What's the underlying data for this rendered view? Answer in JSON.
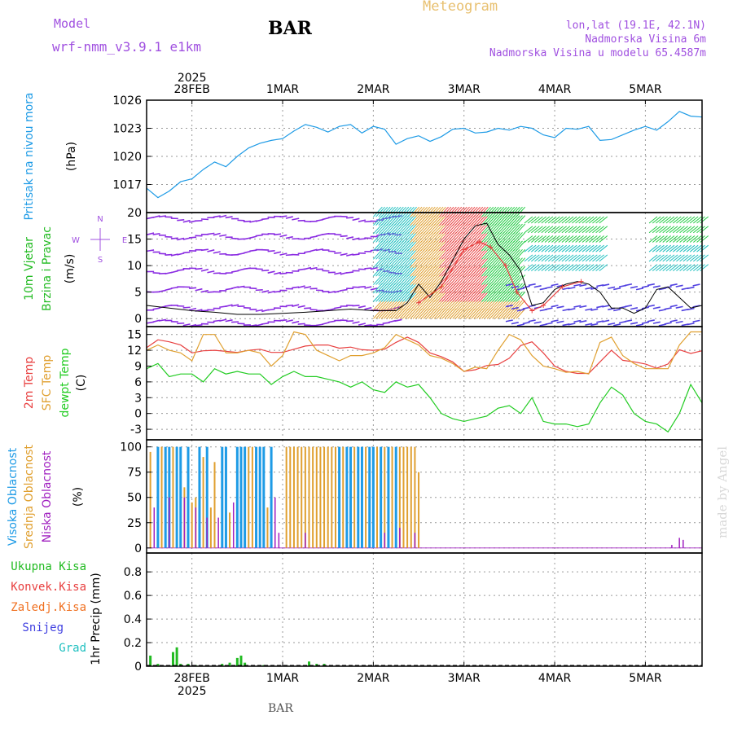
{
  "header": {
    "title": "Meteogram",
    "model_label": "Model",
    "model_name": "wrf-nmm_v3.9.1  e1km",
    "station": "BAR",
    "lonlat": "lon,lat (19.1E, 42.1N)",
    "elevation": "Nadmorska Visina 6m",
    "model_elevation": "Nadmorska Visina u modelu 65.4587m",
    "watermark": "made by Angel",
    "footer": "BAR"
  },
  "colors": {
    "pressure": "#1e9be6",
    "wind_label": "#22bb22",
    "compass": "#a050e0",
    "temp": "#e84040",
    "sfc_temp": "#e0a030",
    "dewpt": "#22cc22",
    "high_cloud": "#1e9be6",
    "mid_cloud": "#e0a030",
    "low_cloud": "#a020c0",
    "precip_total": "#22bb22",
    "precip_conv": "#e84040",
    "precip_frz": "#f07020",
    "snow": "#4040e0",
    "hail": "#20c0c0",
    "header_purple": "#a050e0",
    "header_orange": "#e8c070",
    "gust": "#e84040"
  },
  "time_axis": {
    "year": "2025",
    "days": [
      "28FEB",
      "1MAR",
      "2MAR",
      "3MAR",
      "4MAR",
      "5MAR"
    ],
    "day_positions_hours": [
      12,
      36,
      60,
      84,
      108,
      132
    ],
    "range_hours": [
      0,
      147
    ]
  },
  "chart_data": [
    {
      "type": "line",
      "panel": "pressure",
      "ylabel": "Pritisak na nivou mora",
      "unit": "(hPa)",
      "yticks": [
        "1017",
        "1020",
        "1023",
        "1026"
      ],
      "ylim": [
        1014,
        1026
      ],
      "grid": true,
      "series": [
        {
          "x": [
            0,
            3,
            6,
            9,
            12,
            15,
            18,
            21,
            24,
            27,
            30,
            33,
            36,
            39,
            42,
            45,
            48,
            51,
            54,
            57,
            60,
            63,
            66,
            69,
            72,
            75,
            78,
            81,
            84,
            87,
            90,
            93,
            96,
            99,
            102,
            105,
            108,
            111,
            114,
            117,
            120,
            123,
            126,
            129,
            132,
            135,
            138,
            141,
            144,
            147
          ],
          "values": [
            1016.6,
            1015.6,
            1016.3,
            1017.3,
            1017.6,
            1018.6,
            1019.4,
            1018.9,
            1020.0,
            1020.9,
            1021.4,
            1021.7,
            1021.9,
            1022.7,
            1023.4,
            1023.1,
            1022.6,
            1023.2,
            1023.4,
            1022.5,
            1023.2,
            1022.9,
            1021.3,
            1021.9,
            1022.2,
            1021.6,
            1022.1,
            1022.9,
            1023.0,
            1022.5,
            1022.6,
            1023.0,
            1022.8,
            1023.2,
            1023.0,
            1022.3,
            1022.0,
            1023.0,
            1022.9,
            1023.2,
            1021.7,
            1021.8,
            1022.3,
            1022.8,
            1023.2,
            1022.8,
            1023.7,
            1024.8,
            1024.3,
            1024.2
          ]
        }
      ]
    },
    {
      "type": "line",
      "panel": "wind",
      "ylabel": "10m Vjetar",
      "ylabel2": "Brzina i Pravac",
      "unit": "(m/s)",
      "compass": {
        "n": "N",
        "s": "S",
        "e": "E",
        "w": "W"
      },
      "yticks": [
        "0",
        "5",
        "10",
        "15",
        "20"
      ],
      "ylim": [
        -1.5,
        20
      ],
      "grid": true,
      "series": [
        {
          "name": "speed",
          "x": [
            0,
            6,
            12,
            18,
            24,
            30,
            36,
            42,
            48,
            54,
            60,
            66,
            69,
            72,
            75,
            78,
            81,
            84,
            87,
            90,
            93,
            96,
            99,
            102,
            105,
            108,
            111,
            114,
            117,
            120,
            123,
            126,
            129,
            132,
            135,
            138,
            141,
            144,
            147
          ],
          "values": [
            2.5,
            2.0,
            1.5,
            1.2,
            0.8,
            0.8,
            1.0,
            1.2,
            1.5,
            1.8,
            1.5,
            1.5,
            3.0,
            6.5,
            4.0,
            7.0,
            11.0,
            15.0,
            17.5,
            18.0,
            14.0,
            12.0,
            9.0,
            2.5,
            3.0,
            5.5,
            6.5,
            7.0,
            6.5,
            5.0,
            2.0,
            2.0,
            1.0,
            2.0,
            5.5,
            6.0,
            4.0,
            2.0,
            2.5
          ]
        },
        {
          "name": "gust",
          "x": [
            72,
            78,
            84,
            88,
            91,
            95,
            98,
            102,
            105,
            110,
            115
          ],
          "values": [
            3.0,
            6.0,
            13.0,
            14.5,
            13.5,
            10.0,
            5.0,
            1.5,
            2.5,
            6.0,
            7.0
          ]
        }
      ]
    },
    {
      "type": "line",
      "panel": "temperature",
      "ylabels": [
        "2m Temp",
        "SFC Temp",
        "dewpt Temp"
      ],
      "unit": "(C)",
      "yticks": [
        "-3",
        "0",
        "3",
        "6",
        "9",
        "12",
        "15"
      ],
      "ylim": [
        -5,
        16.5
      ],
      "grid": true,
      "series": [
        {
          "name": "2m Temp",
          "x": [
            0,
            3,
            6,
            9,
            12,
            15,
            18,
            21,
            24,
            27,
            30,
            33,
            36,
            39,
            42,
            45,
            48,
            51,
            54,
            57,
            60,
            63,
            66,
            69,
            72,
            75,
            78,
            81,
            84,
            87,
            90,
            93,
            96,
            99,
            102,
            105,
            108,
            111,
            114,
            117,
            120,
            123,
            126,
            129,
            132,
            135,
            138,
            141,
            144,
            147
          ],
          "values": [
            12.5,
            14.0,
            13.6,
            13.0,
            11.5,
            11.9,
            12.0,
            11.8,
            11.6,
            12.0,
            12.2,
            11.6,
            11.6,
            12.2,
            12.8,
            13.0,
            13.0,
            12.4,
            12.6,
            12.1,
            12.0,
            12.2,
            13.5,
            14.5,
            13.5,
            11.5,
            10.8,
            9.8,
            8.0,
            8.3,
            9.1,
            9.3,
            10.5,
            12.9,
            13.6,
            11.5,
            9.0,
            8.0,
            7.6,
            7.6,
            9.8,
            12.0,
            10.1,
            9.8,
            9.4,
            8.6,
            9.4,
            12.1,
            11.4,
            11.9
          ]
        },
        {
          "name": "SFC Temp",
          "x": [
            0,
            3,
            6,
            9,
            12,
            15,
            18,
            21,
            24,
            27,
            30,
            33,
            36,
            39,
            42,
            45,
            48,
            51,
            54,
            57,
            60,
            63,
            66,
            69,
            72,
            75,
            78,
            81,
            84,
            87,
            90,
            93,
            96,
            99,
            102,
            105,
            108,
            111,
            114,
            117,
            120,
            123,
            126,
            129,
            132,
            135,
            138,
            141,
            144,
            147
          ],
          "values": [
            12.0,
            13.0,
            12.0,
            11.5,
            10.0,
            15.0,
            15.0,
            11.5,
            11.5,
            12.0,
            11.5,
            9.0,
            11.0,
            15.5,
            15.0,
            12.0,
            11.0,
            10.0,
            11.0,
            11.0,
            11.5,
            12.5,
            15.0,
            14.0,
            13.0,
            11.0,
            10.5,
            9.5,
            8.0,
            8.8,
            8.5,
            12.0,
            15.0,
            14.0,
            11.0,
            9.0,
            8.5,
            7.8,
            8.0,
            7.5,
            13.5,
            14.5,
            11.0,
            9.5,
            8.5,
            8.5,
            8.5,
            13.0,
            15.5,
            15.5
          ]
        },
        {
          "name": "dewpt Temp",
          "x": [
            0,
            3,
            6,
            9,
            12,
            15,
            18,
            21,
            24,
            27,
            30,
            33,
            36,
            39,
            42,
            45,
            48,
            51,
            54,
            57,
            60,
            63,
            66,
            69,
            72,
            75,
            78,
            81,
            84,
            87,
            90,
            93,
            96,
            99,
            102,
            105,
            108,
            111,
            114,
            117,
            120,
            123,
            126,
            129,
            132,
            135,
            138,
            141,
            144,
            147
          ],
          "values": [
            8.5,
            9.5,
            7.0,
            7.5,
            7.5,
            6.0,
            8.5,
            7.5,
            8.0,
            7.5,
            7.5,
            5.5,
            7.0,
            8.0,
            7.0,
            7.0,
            6.5,
            6.0,
            5.0,
            6.0,
            4.5,
            4.0,
            6.0,
            5.0,
            5.5,
            3.0,
            0.0,
            -1.0,
            -1.5,
            -1.0,
            -0.5,
            1.0,
            1.5,
            0.0,
            3.0,
            -1.5,
            -2.0,
            -2.0,
            -2.5,
            -2.0,
            2.0,
            5.0,
            3.5,
            0.0,
            -1.5,
            -2.0,
            -3.5,
            0.0,
            5.5,
            2.0
          ]
        }
      ]
    },
    {
      "type": "bar",
      "panel": "cloud",
      "ylabels": [
        "Visoka Oblacnost",
        "Srednja Oblacnost",
        "Niska Oblacnost"
      ],
      "unit": "(%)",
      "yticks": [
        "0",
        "25",
        "50",
        "75",
        "100"
      ],
      "ylim": [
        -5,
        107
      ],
      "grid": true,
      "series": [
        {
          "name": "Visoka Oblacnost",
          "x": [
            3,
            5,
            6,
            8,
            9,
            11,
            14,
            16,
            20,
            21,
            24,
            25,
            26,
            29,
            30,
            31,
            33,
            51,
            53,
            54,
            56,
            57,
            59,
            60,
            62,
            64,
            66
          ],
          "values": [
            100,
            100,
            100,
            100,
            100,
            100,
            100,
            100,
            100,
            100,
            100,
            100,
            100,
            100,
            100,
            100,
            100,
            100,
            100,
            100,
            100,
            100,
            100,
            100,
            100,
            100,
            100
          ]
        },
        {
          "name": "Srednja Oblacnost",
          "x": [
            1,
            4,
            7,
            10,
            12,
            13,
            15,
            17,
            18,
            22,
            27,
            28,
            32,
            37,
            38,
            39,
            40,
            41,
            42,
            43,
            44,
            45,
            46,
            47,
            48,
            49,
            50,
            52,
            55,
            58,
            61,
            63,
            65,
            67,
            68,
            69,
            70,
            71,
            72
          ],
          "values": [
            95,
            100,
            100,
            60,
            45,
            50,
            90,
            40,
            85,
            35,
            100,
            100,
            40,
            100,
            100,
            100,
            100,
            100,
            100,
            100,
            100,
            100,
            100,
            100,
            100,
            100,
            100,
            100,
            100,
            100,
            100,
            100,
            100,
            100,
            100,
            100,
            100,
            100,
            75
          ]
        },
        {
          "name": "Niska Oblacnost",
          "x": [
            2,
            6,
            10,
            13,
            16,
            19,
            23,
            34,
            35,
            42,
            63,
            67,
            71,
            139,
            141,
            142
          ],
          "values": [
            40,
            50,
            50,
            40,
            30,
            30,
            45,
            50,
            15,
            15,
            15,
            20,
            15,
            3,
            10,
            8
          ]
        }
      ]
    },
    {
      "type": "bar",
      "panel": "precip",
      "ylabel": "1hr Precip (mm)",
      "legend": [
        "Ukupna Kisa",
        "Konvek.Kisa",
        "Zaledj.Kisa",
        "Snijeg",
        "Grad"
      ],
      "yticks": [
        "0",
        "0.2",
        "0.4",
        "0.6",
        "0.8"
      ],
      "ylim": [
        0,
        0.96
      ],
      "grid": true,
      "series": [
        {
          "name": "Ukupna Kisa",
          "x": [
            1,
            2,
            3,
            6,
            7,
            8,
            9,
            11,
            13,
            16,
            20,
            22,
            23,
            24,
            25,
            26,
            30,
            31,
            37,
            43,
            45,
            47,
            49
          ],
          "values": [
            0.09,
            0.01,
            0.02,
            0.01,
            0.12,
            0.16,
            0.02,
            0.02,
            0.01,
            0.01,
            0.02,
            0.03,
            0.01,
            0.07,
            0.09,
            0.03,
            0.01,
            0.01,
            0.01,
            0.04,
            0.02,
            0.02,
            0.01
          ]
        }
      ]
    }
  ]
}
